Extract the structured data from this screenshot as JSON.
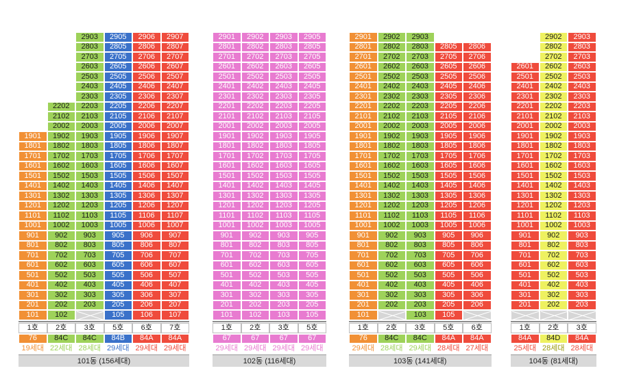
{
  "colors": {
    "orange": "#f19035",
    "green": "#9ed25a",
    "blue": "#3a71c9",
    "red": "#ef4b3c",
    "pink": "#e87bd0",
    "yellow": "#eef160",
    "empty": "#d6d6d6",
    "label_bg": "#d9d9d9"
  },
  "buildings": [
    {
      "id": "101",
      "label": "101동 (156세대)",
      "columns": [
        {
          "line": "1",
          "ho_label": "1호",
          "area": "76",
          "households": "19세대",
          "color": "orange",
          "top_floor": 19,
          "bottom_floor": 1,
          "empty_floors": []
        },
        {
          "line": "2",
          "ho_label": "2호",
          "area": "84C",
          "households": "22세대",
          "color": "green",
          "top_floor": 22,
          "bottom_floor": 1,
          "empty_floors": []
        },
        {
          "line": "3",
          "ho_label": "3호",
          "area": "84C",
          "households": "28세대",
          "color": "green",
          "top_floor": 29,
          "bottom_floor": 1,
          "empty_floors": [
            1
          ]
        },
        {
          "line": "5",
          "ho_label": "5호",
          "area": "84B",
          "households": "29세대",
          "color": "blue",
          "top_floor": 29,
          "bottom_floor": 1,
          "empty_floors": []
        },
        {
          "line": "6",
          "ho_label": "6호",
          "area": "84A",
          "households": "29세대",
          "color": "red",
          "top_floor": 29,
          "bottom_floor": 1,
          "empty_floors": []
        },
        {
          "line": "7",
          "ho_label": "7호",
          "area": "84A",
          "households": "29세대",
          "color": "red",
          "top_floor": 29,
          "bottom_floor": 1,
          "empty_floors": []
        }
      ]
    },
    {
      "id": "102",
      "label": "102동 (116세대)",
      "columns": [
        {
          "line": "1",
          "ho_label": "1호",
          "area": "67",
          "households": "29세대",
          "color": "pink",
          "top_floor": 29,
          "bottom_floor": 1,
          "empty_floors": []
        },
        {
          "line": "2",
          "ho_label": "2호",
          "area": "67",
          "households": "29세대",
          "color": "pink",
          "top_floor": 29,
          "bottom_floor": 1,
          "empty_floors": []
        },
        {
          "line": "3",
          "ho_label": "3호",
          "area": "67",
          "households": "29세대",
          "color": "pink",
          "top_floor": 29,
          "bottom_floor": 1,
          "empty_floors": []
        },
        {
          "line": "5",
          "ho_label": "5호",
          "area": "67",
          "households": "29세대",
          "color": "pink",
          "top_floor": 29,
          "bottom_floor": 1,
          "empty_floors": []
        }
      ]
    },
    {
      "id": "103",
      "label": "103동 (141세대)",
      "columns": [
        {
          "line": "1",
          "ho_label": "1호",
          "area": "76",
          "households": "29세대",
          "color": "orange",
          "top_floor": 29,
          "bottom_floor": 1,
          "empty_floors": []
        },
        {
          "line": "2",
          "ho_label": "2호",
          "area": "84C",
          "households": "28세대",
          "color": "green",
          "top_floor": 29,
          "bottom_floor": 1,
          "empty_floors": [
            1
          ]
        },
        {
          "line": "3",
          "ho_label": "3호",
          "area": "84C",
          "households": "29세대",
          "color": "green",
          "top_floor": 29,
          "bottom_floor": 1,
          "empty_floors": []
        },
        {
          "line": "5",
          "ho_label": "5호",
          "area": "84A",
          "households": "28세대",
          "color": "red",
          "top_floor": 28,
          "bottom_floor": 1,
          "empty_floors": []
        },
        {
          "line": "6",
          "ho_label": "6호",
          "area": "84A",
          "households": "27세대",
          "color": "red",
          "top_floor": 28,
          "bottom_floor": 1,
          "empty_floors": [
            1
          ]
        }
      ]
    },
    {
      "id": "104",
      "label": "104동 (81세대)",
      "columns": [
        {
          "line": "1",
          "ho_label": "1호",
          "area": "84A",
          "households": "25세대",
          "color": "red",
          "top_floor": 26,
          "bottom_floor": 1,
          "empty_floors": [
            1
          ]
        },
        {
          "line": "2",
          "ho_label": "2호",
          "area": "84D",
          "households": "28세대",
          "color": "yellow",
          "top_floor": 29,
          "bottom_floor": 1,
          "empty_floors": [
            1
          ]
        },
        {
          "line": "3",
          "ho_label": "3호",
          "area": "84A",
          "households": "28세대",
          "color": "red",
          "top_floor": 29,
          "bottom_floor": 1,
          "empty_floors": [
            1
          ]
        }
      ]
    }
  ]
}
